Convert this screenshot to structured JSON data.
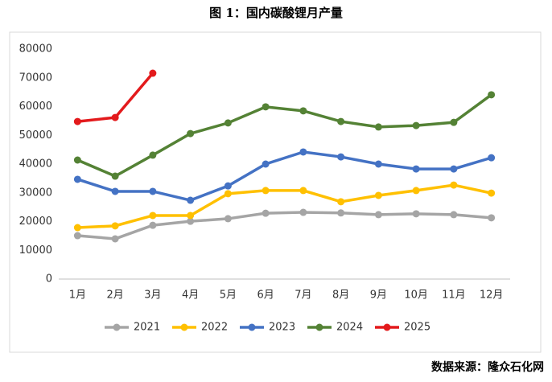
{
  "chart_data": {
    "type": "line",
    "title": "图 1：国内碳酸锂月产量",
    "source": "数据来源：隆众石化网",
    "categories": [
      "1月",
      "2月",
      "3月",
      "4月",
      "5月",
      "6月",
      "7月",
      "8月",
      "9月",
      "10月",
      "11月",
      "12月"
    ],
    "series": [
      {
        "name": "2021",
        "color": "#a5a5a5",
        "values": [
          15100,
          14000,
          18700,
          20100,
          21000,
          22900,
          23200,
          23000,
          22400,
          22700,
          22400,
          21300
        ]
      },
      {
        "name": "2022",
        "color": "#ffc000",
        "values": [
          17900,
          18500,
          22100,
          22100,
          29700,
          30800,
          30800,
          26900,
          29100,
          30800,
          32700,
          29900
        ]
      },
      {
        "name": "2023",
        "color": "#4472c4",
        "values": [
          34700,
          30500,
          30500,
          27400,
          32400,
          40000,
          44200,
          42500,
          40000,
          38300,
          38300,
          42200
        ]
      },
      {
        "name": "2024",
        "color": "#548235",
        "values": [
          41400,
          35800,
          43100,
          50600,
          54300,
          59900,
          58500,
          54800,
          52900,
          53400,
          54500,
          64100
        ]
      },
      {
        "name": "2025",
        "color": "#e31a1c",
        "values": [
          54800,
          56200,
          71600,
          null,
          null,
          null,
          null,
          null,
          null,
          null,
          null,
          null
        ]
      }
    ],
    "ylim": [
      0,
      80000
    ],
    "yticks": [
      0,
      10000,
      20000,
      30000,
      40000,
      50000,
      60000,
      70000,
      80000
    ],
    "grid": false,
    "legend": "bottom"
  }
}
